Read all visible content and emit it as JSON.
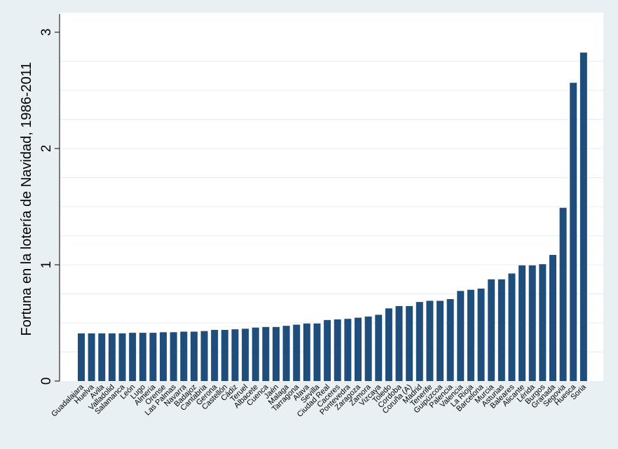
{
  "chart_data": {
    "type": "bar",
    "title": "",
    "xlabel": "",
    "ylabel": "Fortuna en la lotería de Navidad, 1986-2011",
    "ylim": [
      0,
      3.0
    ],
    "y_ticks": [
      0,
      1,
      2,
      3
    ],
    "minor_gridlines": [
      0.25,
      0.5,
      0.75,
      1.0,
      1.25,
      1.5,
      1.75,
      2.0,
      2.25,
      2.5,
      2.75
    ],
    "grid": true,
    "bar_color": "#1f4e7d",
    "plot_background": "#ffffff",
    "outer_background": "#e9f0f4",
    "categories": [
      "Guadalajara",
      "Huelva",
      "Avila",
      "Valladolid",
      "Salamanca",
      "León",
      "Lugo",
      "Almeria",
      "Orense",
      "Las Palmas",
      "Navarra",
      "Badajoz",
      "Cantabria",
      "Gerona",
      "Castellón",
      "Cádiz",
      "Teruel",
      "Albacete",
      "Cuenca",
      "Jaén",
      "Malaga",
      "Tarragona",
      "Alava",
      "Sevilla",
      "Ciudad Real",
      "Caceres",
      "Pontevedra",
      "Zaragoza",
      "Zamora",
      "Vizcaya",
      "Toledo",
      "Cordoba",
      "Coruña (A)",
      "Madrid",
      "Tenerife",
      "Guipúzcoa",
      "Palencia",
      "Valencia",
      "La Rioja",
      "Barcelona",
      "Murcia",
      "Asturias",
      "Baleares",
      "Alicante",
      "Lérida",
      "Burgos",
      "Granada",
      "Segovia",
      "Huesca",
      "Soria"
    ],
    "values": [
      0.41,
      0.41,
      0.41,
      0.41,
      0.41,
      0.415,
      0.415,
      0.415,
      0.42,
      0.42,
      0.425,
      0.425,
      0.43,
      0.44,
      0.44,
      0.445,
      0.45,
      0.46,
      0.465,
      0.465,
      0.475,
      0.485,
      0.495,
      0.495,
      0.525,
      0.53,
      0.535,
      0.545,
      0.555,
      0.57,
      0.625,
      0.645,
      0.645,
      0.68,
      0.69,
      0.69,
      0.705,
      0.775,
      0.785,
      0.795,
      0.875,
      0.875,
      0.925,
      0.995,
      0.995,
      1.005,
      1.085,
      1.49,
      2.565,
      2.825
    ]
  }
}
